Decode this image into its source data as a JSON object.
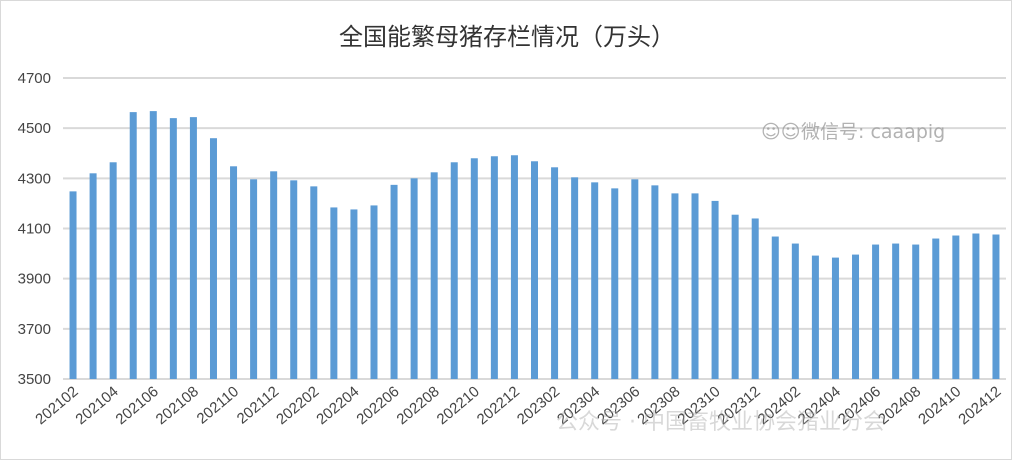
{
  "chart_data": {
    "type": "bar",
    "title": "全国能繁母猪存栏情况（万头）",
    "xlabel": "",
    "ylabel": "",
    "ylim": [
      3500,
      4700
    ],
    "yticks": [
      "3500",
      "3700",
      "3900",
      "4100",
      "4300",
      "4500",
      "4700"
    ],
    "grid": true,
    "legend": "none",
    "color": "#5B9BD5",
    "categories": [
      "202102",
      "202103",
      "202104",
      "202105",
      "202106",
      "202107",
      "202108",
      "202109",
      "202110",
      "202111",
      "202112",
      "202201",
      "202202",
      "202203",
      "202204",
      "202205",
      "202206",
      "202207",
      "202208",
      "202209",
      "202210",
      "202211",
      "202212",
      "202301",
      "202302",
      "202303",
      "202304",
      "202305",
      "202306",
      "202307",
      "202308",
      "202309",
      "202310",
      "202311",
      "202312",
      "202401",
      "202402",
      "202403",
      "202404",
      "202405",
      "202406",
      "202407",
      "202408",
      "202409",
      "202410",
      "202411",
      "202412"
    ],
    "xtick_labels": [
      "202102",
      "202104",
      "202106",
      "202108",
      "202110",
      "202112",
      "202202",
      "202204",
      "202206",
      "202208",
      "202210",
      "202212",
      "202302",
      "202304",
      "202306",
      "202308",
      "202310",
      "202312",
      "202402",
      "202404",
      "202406",
      "202408",
      "202410",
      "202412"
    ],
    "values": [
      4248,
      4320,
      4364,
      4564,
      4568,
      4540,
      4544,
      4460,
      4348,
      4296,
      4328,
      4292,
      4268,
      4184,
      4176,
      4192,
      4274,
      4300,
      4324,
      4364,
      4380,
      4388,
      4392,
      4368,
      4344,
      4304,
      4284,
      4260,
      4296,
      4272,
      4240,
      4240,
      4210,
      4155,
      4140,
      4068,
      4040,
      3992,
      3984,
      3996,
      4036,
      4040,
      4036,
      4060,
      4072,
      4080,
      4076
    ]
  },
  "watermarks": {
    "wechat_id": "微信号: caaapig",
    "official_account": "公众号 · 中国畜牧业协会猪业分会"
  }
}
